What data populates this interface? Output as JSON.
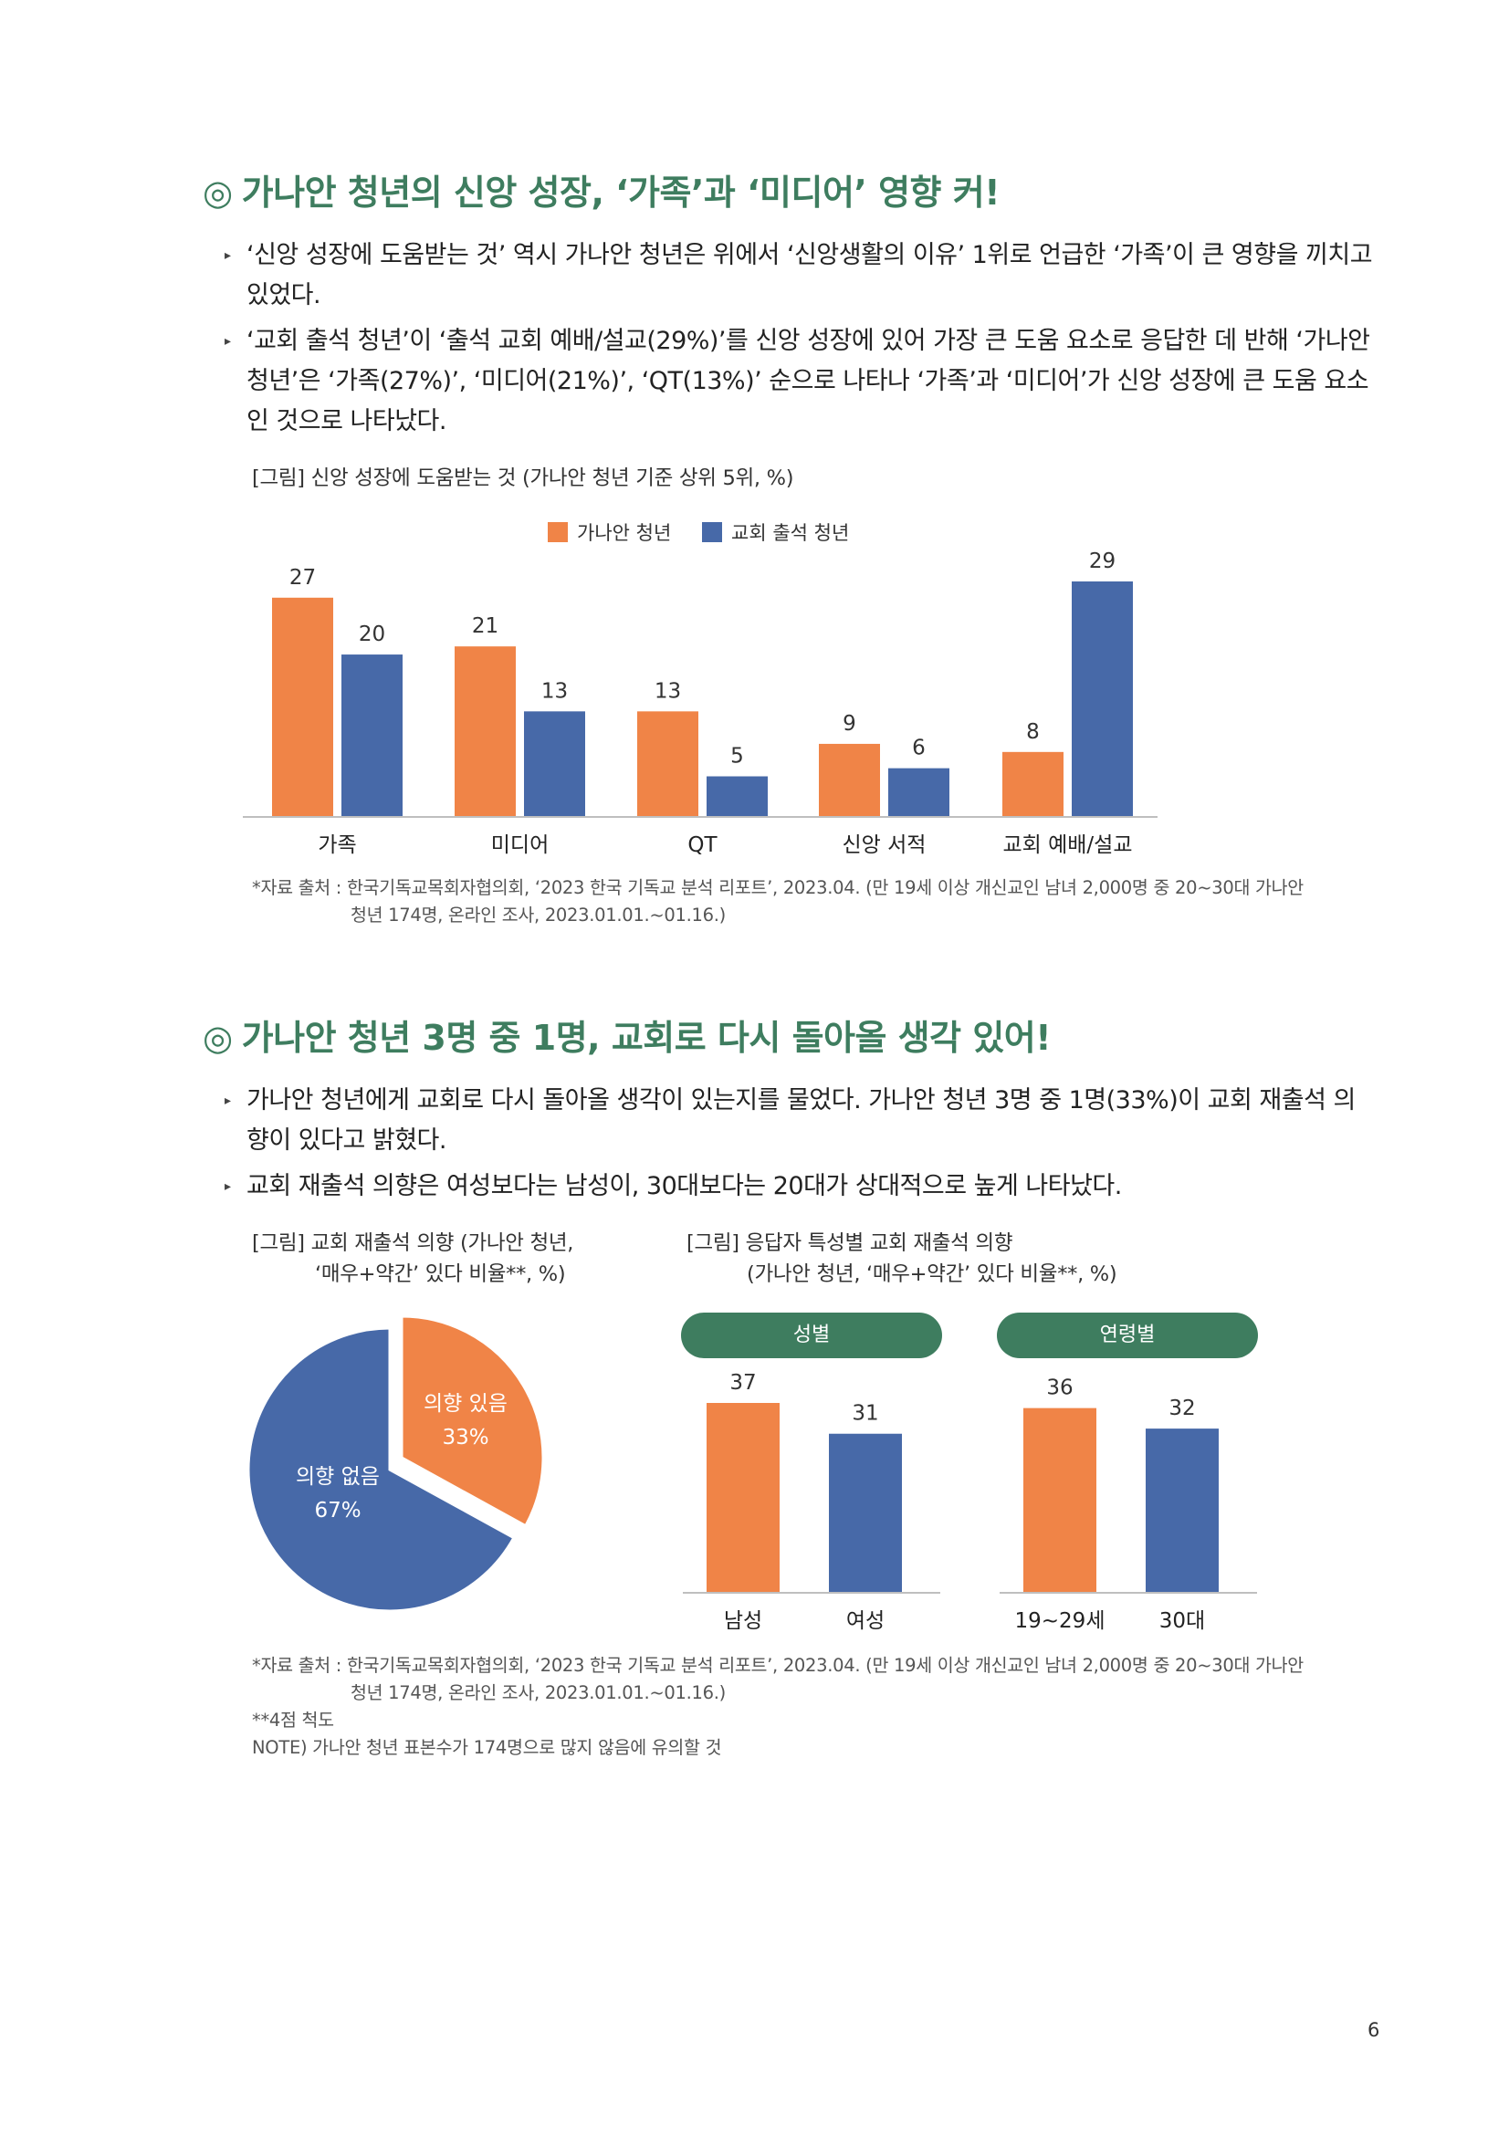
{
  "colors": {
    "orange": "#f08447",
    "blue": "#4769a8",
    "green": "#3e7d5f"
  },
  "section1": {
    "mark": "◎",
    "title": "가나안 청년의 신앙 성장, ‘가족’과 ‘미디어’ 영향 커!",
    "bullets": [
      "‘신앙 성장에 도움받는 것’ 역시 가나안 청년은 위에서 ‘신앙생활의 이유’ 1위로 언급한 ‘가족’이 큰 영향을 끼치고 있었다.",
      "‘교회 출석 청년’이 ‘출석 교회 예배/설교(29%)’를 신앙 성장에 있어 가장 큰 도움 요소로 응답한 데 반해 ‘가나안 청년’은 ‘가족(27%)’, ‘미디어(21%)’, ‘QT(13%)’ 순으로 나타나 ‘가족’과 ‘미디어’가 신앙 성장에 큰 도움 요소인 것으로 나타났다."
    ],
    "figure_caption": "[그림] 신앙 성장에 도움받는 것 (가나안 청년 기준 상위 5위, %)",
    "source_line1": "*자료 출처 : 한국기독교목회자협의회, ‘2023 한국 기독교 분석 리포트’, 2023.04. (만 19세 이상 개신교인 남녀 2,000명 중 20~30대 가나안",
    "source_line2": "청년 174명, 온라인 조사, 2023.01.01.~01.16.)"
  },
  "section2": {
    "mark": "◎",
    "title": "가나안 청년 3명 중 1명, 교회로 다시 돌아올 생각 있어!",
    "bullets": [
      "가나안 청년에게 교회로 다시 돌아올 생각이 있는지를 물었다. 가나안 청년 3명 중 1명(33%)이 교회 재출석 의향이 있다고 밝혔다.",
      "교회 재출석 의향은 여성보다는 남성이, 30대보다는 20대가 상대적으로 높게 나타났다."
    ],
    "pie_caption_line1": "[그림] 교회 재출석 의향 (가나안 청년,",
    "pie_caption_line2": "‘매우+약간’ 있다 비율**, %)",
    "bar_caption_line1": "[그림] 응답자 특성별 교회 재출석 의향",
    "bar_caption_line2": "(가나안 청년, ‘매우+약간’ 있다 비율**, %)",
    "pill_gender": "성별",
    "pill_age": "연령별",
    "source_line1": "*자료 출처 : 한국기독교목회자협의회, ‘2023 한국 기독교 분석 리포트’, 2023.04. (만 19세 이상 개신교인 남녀 2,000명 중 20~30대 가나안",
    "source_line2": "청년 174명, 온라인 조사, 2023.01.01.~01.16.)",
    "note1": "**4점 척도",
    "note2": "NOTE) 가나안 청년 표본수가 174명으로 많지 않음에 유의할 것"
  },
  "page_number": "6",
  "chart_data": [
    {
      "type": "bar",
      "categories": [
        "가족",
        "미디어",
        "QT",
        "신앙 서적",
        "교회 예배/설교"
      ],
      "series": [
        {
          "name": "가나안 청년",
          "values": [
            27,
            21,
            13,
            9,
            8
          ],
          "color": "#f08447"
        },
        {
          "name": "교회 출석 청년",
          "values": [
            20,
            13,
            5,
            6,
            29
          ],
          "color": "#4769a8"
        }
      ],
      "ylim": [
        0,
        29
      ],
      "legend": "top-center",
      "grid": false
    },
    {
      "type": "pie",
      "slices": [
        {
          "label": "의향 있음",
          "value": 33,
          "display": "33%",
          "color": "#f08447"
        },
        {
          "label": "의향 없음",
          "value": 67,
          "display": "67%",
          "color": "#4769a8"
        }
      ]
    },
    {
      "type": "bar",
      "group": "성별",
      "categories": [
        "남성",
        "여성"
      ],
      "values": [
        37,
        31
      ],
      "colors": [
        "#f08447",
        "#4769a8"
      ],
      "ylim": [
        0,
        37
      ]
    },
    {
      "type": "bar",
      "group": "연령별",
      "categories": [
        "19~29세",
        "30대"
      ],
      "values": [
        36,
        32
      ],
      "colors": [
        "#f08447",
        "#4769a8"
      ],
      "ylim": [
        0,
        37
      ]
    }
  ]
}
